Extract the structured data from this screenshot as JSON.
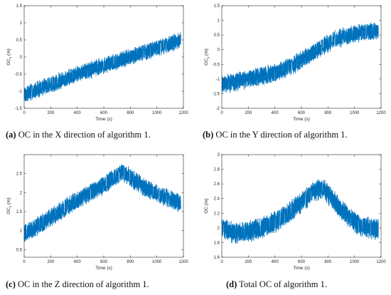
{
  "colors": {
    "series": "#0072BD",
    "axis": "#262626",
    "background": "#ffffff"
  },
  "captions": [
    {
      "tag": "(a)",
      "text": " OC in the X direction of algorithm 1."
    },
    {
      "tag": "(b)",
      "text": " OC in the Y direction of algorithm 1."
    },
    {
      "tag": "(c)",
      "text": " OC in the Z direction of algorithm 1."
    },
    {
      "tag": "(d)",
      "text": " Total OC of algorithm 1."
    }
  ],
  "chart_data": [
    {
      "type": "line",
      "xlabel": "Time (s)",
      "ylabel": "OC",
      "ylabel_sub": "x",
      "ylabel_unit": " (m)",
      "xlim": [
        0,
        1200
      ],
      "ylim": [
        -1.5,
        1.5
      ],
      "xticks": [
        0,
        200,
        400,
        600,
        800,
        1000,
        1200
      ],
      "yticks": [
        -1.5,
        -1,
        -0.5,
        0,
        0.5,
        1,
        1.5
      ],
      "ytick_labels": [
        "-1.5",
        "-1",
        "-0.5",
        "0",
        "0.5",
        "1",
        "1.5"
      ],
      "x_range": [
        0,
        1180
      ],
      "trend": [
        [
          0,
          -1.1
        ],
        [
          200,
          -0.8
        ],
        [
          400,
          -0.5
        ],
        [
          600,
          -0.25
        ],
        [
          800,
          0.0
        ],
        [
          1000,
          0.25
        ],
        [
          1180,
          0.5
        ]
      ],
      "band": 0.22
    },
    {
      "type": "line",
      "xlabel": "Time (s)",
      "ylabel": "OC",
      "ylabel_sub": "y",
      "ylabel_unit": " (m)",
      "xlim": [
        0,
        1200
      ],
      "ylim": [
        -2,
        1.5
      ],
      "xticks": [
        0,
        200,
        400,
        600,
        800,
        1000,
        1200
      ],
      "yticks": [
        -2,
        -1.5,
        -1,
        -0.5,
        0,
        0.5,
        1,
        1.5
      ],
      "ytick_labels": [
        "-2",
        "-1.5",
        "-1",
        "-0.5",
        "0",
        "0.5",
        "1",
        "1.5"
      ],
      "x_range": [
        0,
        1180
      ],
      "trend": [
        [
          0,
          -1.2
        ],
        [
          200,
          -1.0
        ],
        [
          400,
          -0.8
        ],
        [
          550,
          -0.5
        ],
        [
          700,
          -0.05
        ],
        [
          850,
          0.35
        ],
        [
          1000,
          0.55
        ],
        [
          1180,
          0.65
        ]
      ],
      "band": 0.28
    },
    {
      "type": "line",
      "xlabel": "Time (s)",
      "ylabel": "OC",
      "ylabel_sub": "z",
      "ylabel_unit": " (m)",
      "xlim": [
        0,
        1200
      ],
      "ylim": [
        0.3,
        3
      ],
      "xticks": [
        0,
        200,
        400,
        600,
        800,
        1000,
        1200
      ],
      "yticks": [
        0.5,
        1,
        1.5,
        2,
        2.5
      ],
      "ytick_labels": [
        "0.5",
        "1",
        "1.5",
        "2",
        "2.5"
      ],
      "x_range": [
        0,
        1180
      ],
      "trend": [
        [
          0,
          0.9
        ],
        [
          200,
          1.35
        ],
        [
          400,
          1.8
        ],
        [
          600,
          2.2
        ],
        [
          740,
          2.55
        ],
        [
          900,
          2.15
        ],
        [
          1050,
          1.9
        ],
        [
          1180,
          1.7
        ]
      ],
      "band": 0.22
    },
    {
      "type": "line",
      "xlabel": "Time (s)",
      "ylabel": "OC (m)",
      "ylabel_sub": "",
      "ylabel_unit": "",
      "xlim": [
        0,
        1200
      ],
      "ylim": [
        1.6,
        3
      ],
      "xticks": [
        0,
        200,
        400,
        600,
        800,
        1000,
        1200
      ],
      "yticks": [
        1.6,
        1.8,
        2,
        2.2,
        2.4,
        2.6,
        2.8,
        3
      ],
      "ytick_labels": [
        "1.6",
        "1.8",
        "2",
        "2.2",
        "2.4",
        "2.6",
        "2.8",
        "3"
      ],
      "x_range": [
        0,
        1180
      ],
      "trend": [
        [
          0,
          1.98
        ],
        [
          100,
          1.93
        ],
        [
          200,
          1.95
        ],
        [
          300,
          2.0
        ],
        [
          400,
          2.08
        ],
        [
          500,
          2.2
        ],
        [
          600,
          2.35
        ],
        [
          700,
          2.5
        ],
        [
          760,
          2.55
        ],
        [
          850,
          2.35
        ],
        [
          950,
          2.15
        ],
        [
          1050,
          2.02
        ],
        [
          1180,
          1.98
        ]
      ],
      "band": 0.13
    }
  ]
}
